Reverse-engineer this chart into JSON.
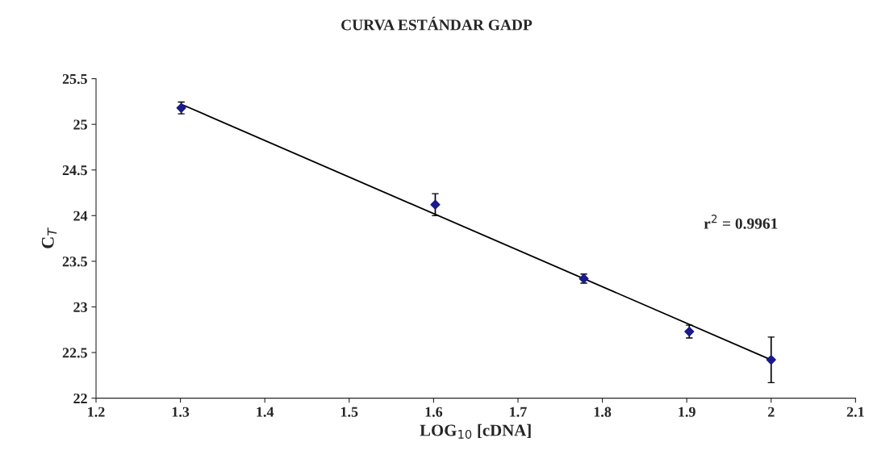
{
  "chart_data": {
    "type": "scatter",
    "title": "CURVA ESTÁNDAR GADP",
    "xlabel": "LOG$_{10}$ [cDNA]",
    "ylabel": "C$_{T}$",
    "annotations": [
      "r$^{2}$ = 0.9961"
    ],
    "series": [
      {
        "color": "#1a1a8c",
        "x": [
          1.301,
          1.602,
          1.778,
          1.903,
          2.0
        ],
        "values": [
          25.18,
          24.12,
          23.31,
          22.73,
          22.42
        ],
        "errors": [
          0.065,
          0.12,
          0.05,
          0.07,
          0.25
        ],
        "marker": "diamond"
      },
      {
        "type": "line",
        "color": "#000000",
        "x": [
          1.301,
          2.0
        ],
        "values": [
          25.22,
          22.42
        ],
        "line_style": "solid"
      }
    ],
    "xlim": [
      1.2,
      2.1
    ],
    "xticks": [
      1.2,
      1.3,
      1.4,
      1.5,
      1.6,
      1.7,
      1.8,
      1.9,
      2,
      2.1
    ],
    "ylim": [
      22,
      25.5
    ],
    "yticks": [
      22,
      22.5,
      23,
      23.5,
      24,
      24.5,
      25,
      25.5
    ],
    "grid": false
  }
}
